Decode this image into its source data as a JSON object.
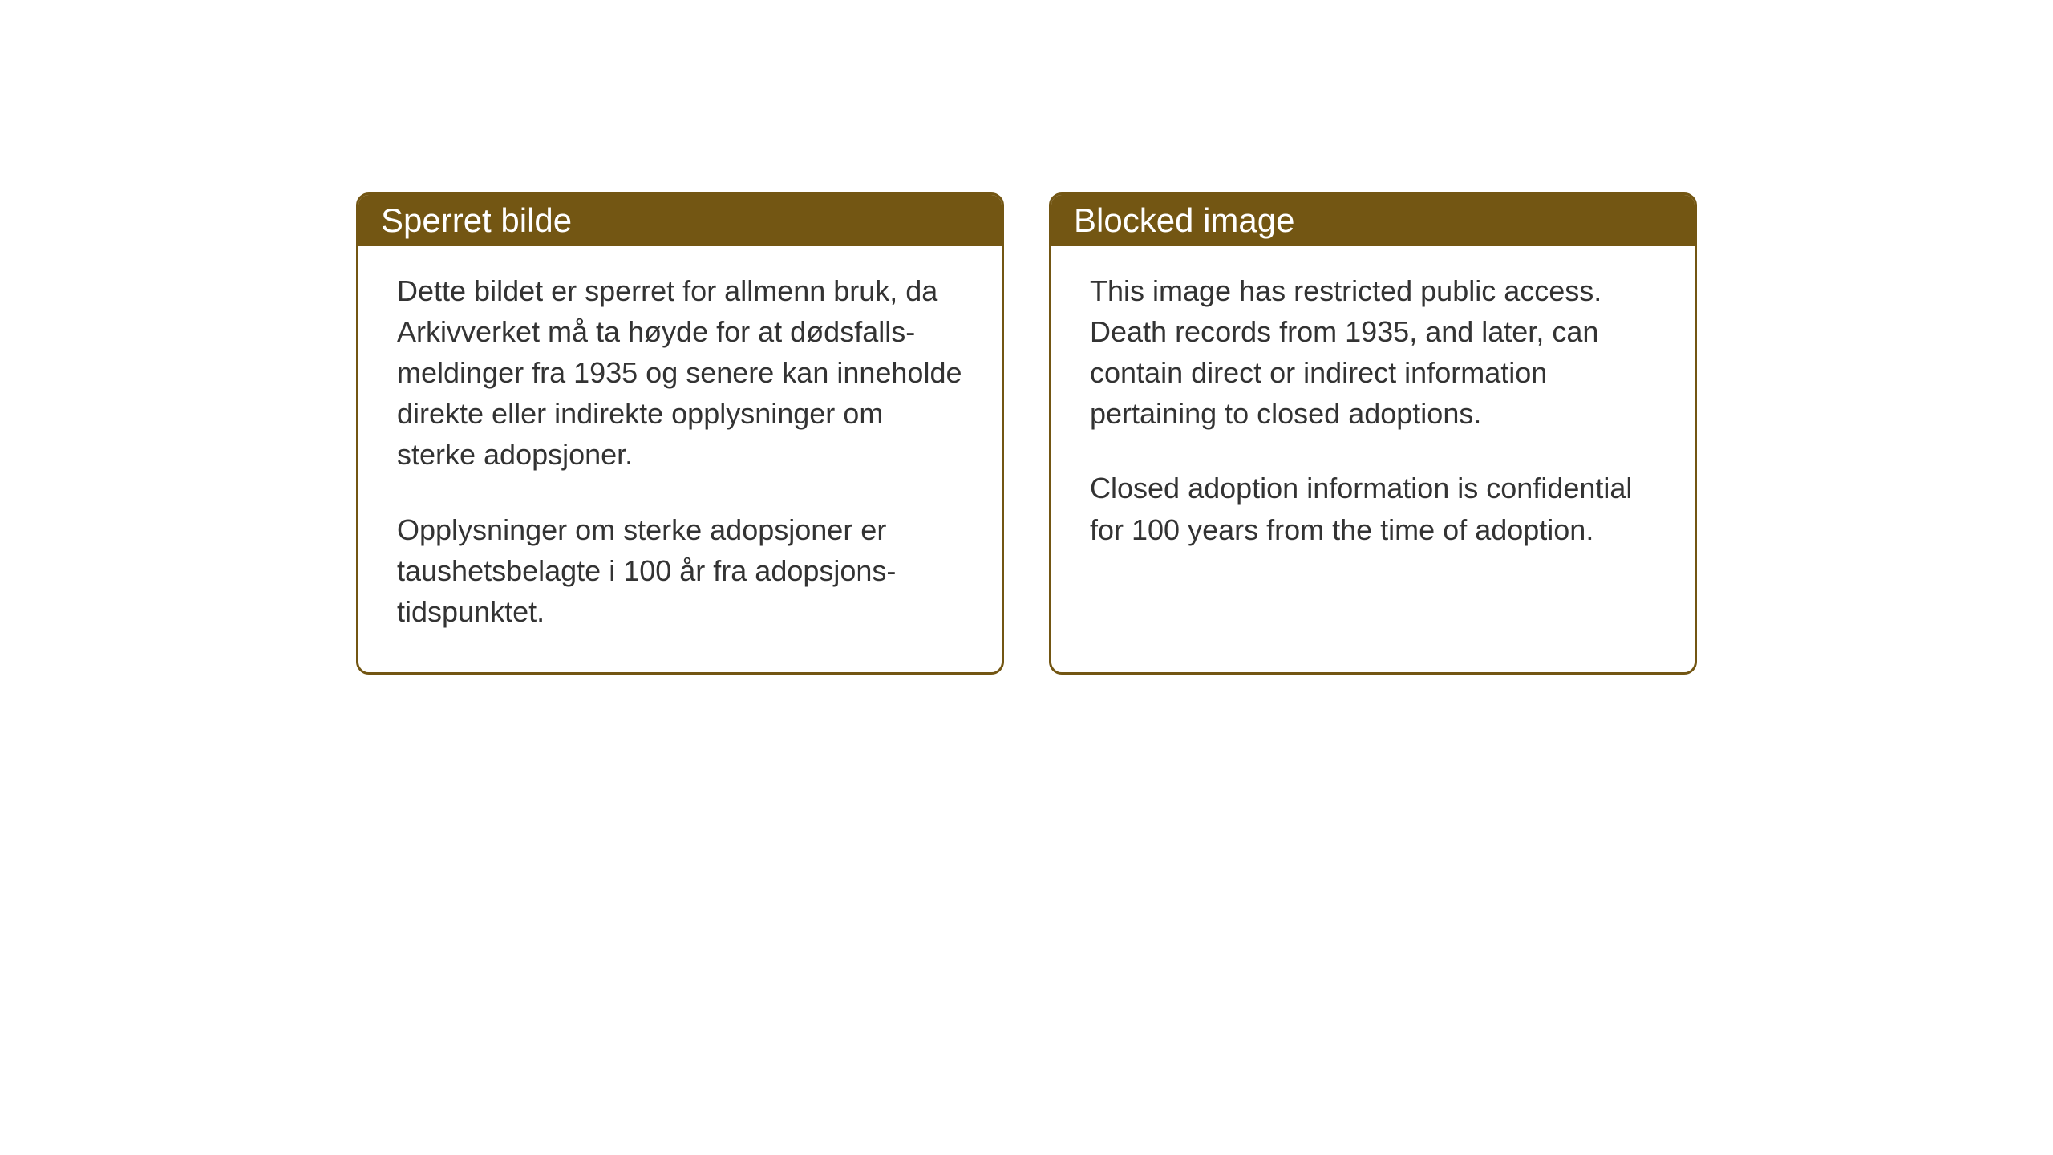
{
  "layout": {
    "background_color": "#ffffff",
    "box_border_color": "#735613",
    "header_bg_color": "#735613",
    "header_text_color": "#ffffff",
    "body_text_color": "#333333",
    "header_fontsize": 42,
    "body_fontsize": 36,
    "border_radius": 16,
    "border_width": 3
  },
  "notices": {
    "norwegian": {
      "title": "Sperret bilde",
      "paragraph1": "Dette bildet er sperret for allmenn bruk, da Arkivverket må ta høyde for at dødsfalls-meldinger fra 1935 og senere kan inneholde direkte eller indirekte opplysninger om sterke adopsjoner.",
      "paragraph2": "Opplysninger om sterke adopsjoner er taushetsbelagte i 100 år fra adopsjons-tidspunktet."
    },
    "english": {
      "title": "Blocked image",
      "paragraph1": "This image has restricted public access. Death records from 1935, and later, can contain direct or indirect information pertaining to closed adoptions.",
      "paragraph2": "Closed adoption information is confidential for 100 years from the time of adoption."
    }
  }
}
